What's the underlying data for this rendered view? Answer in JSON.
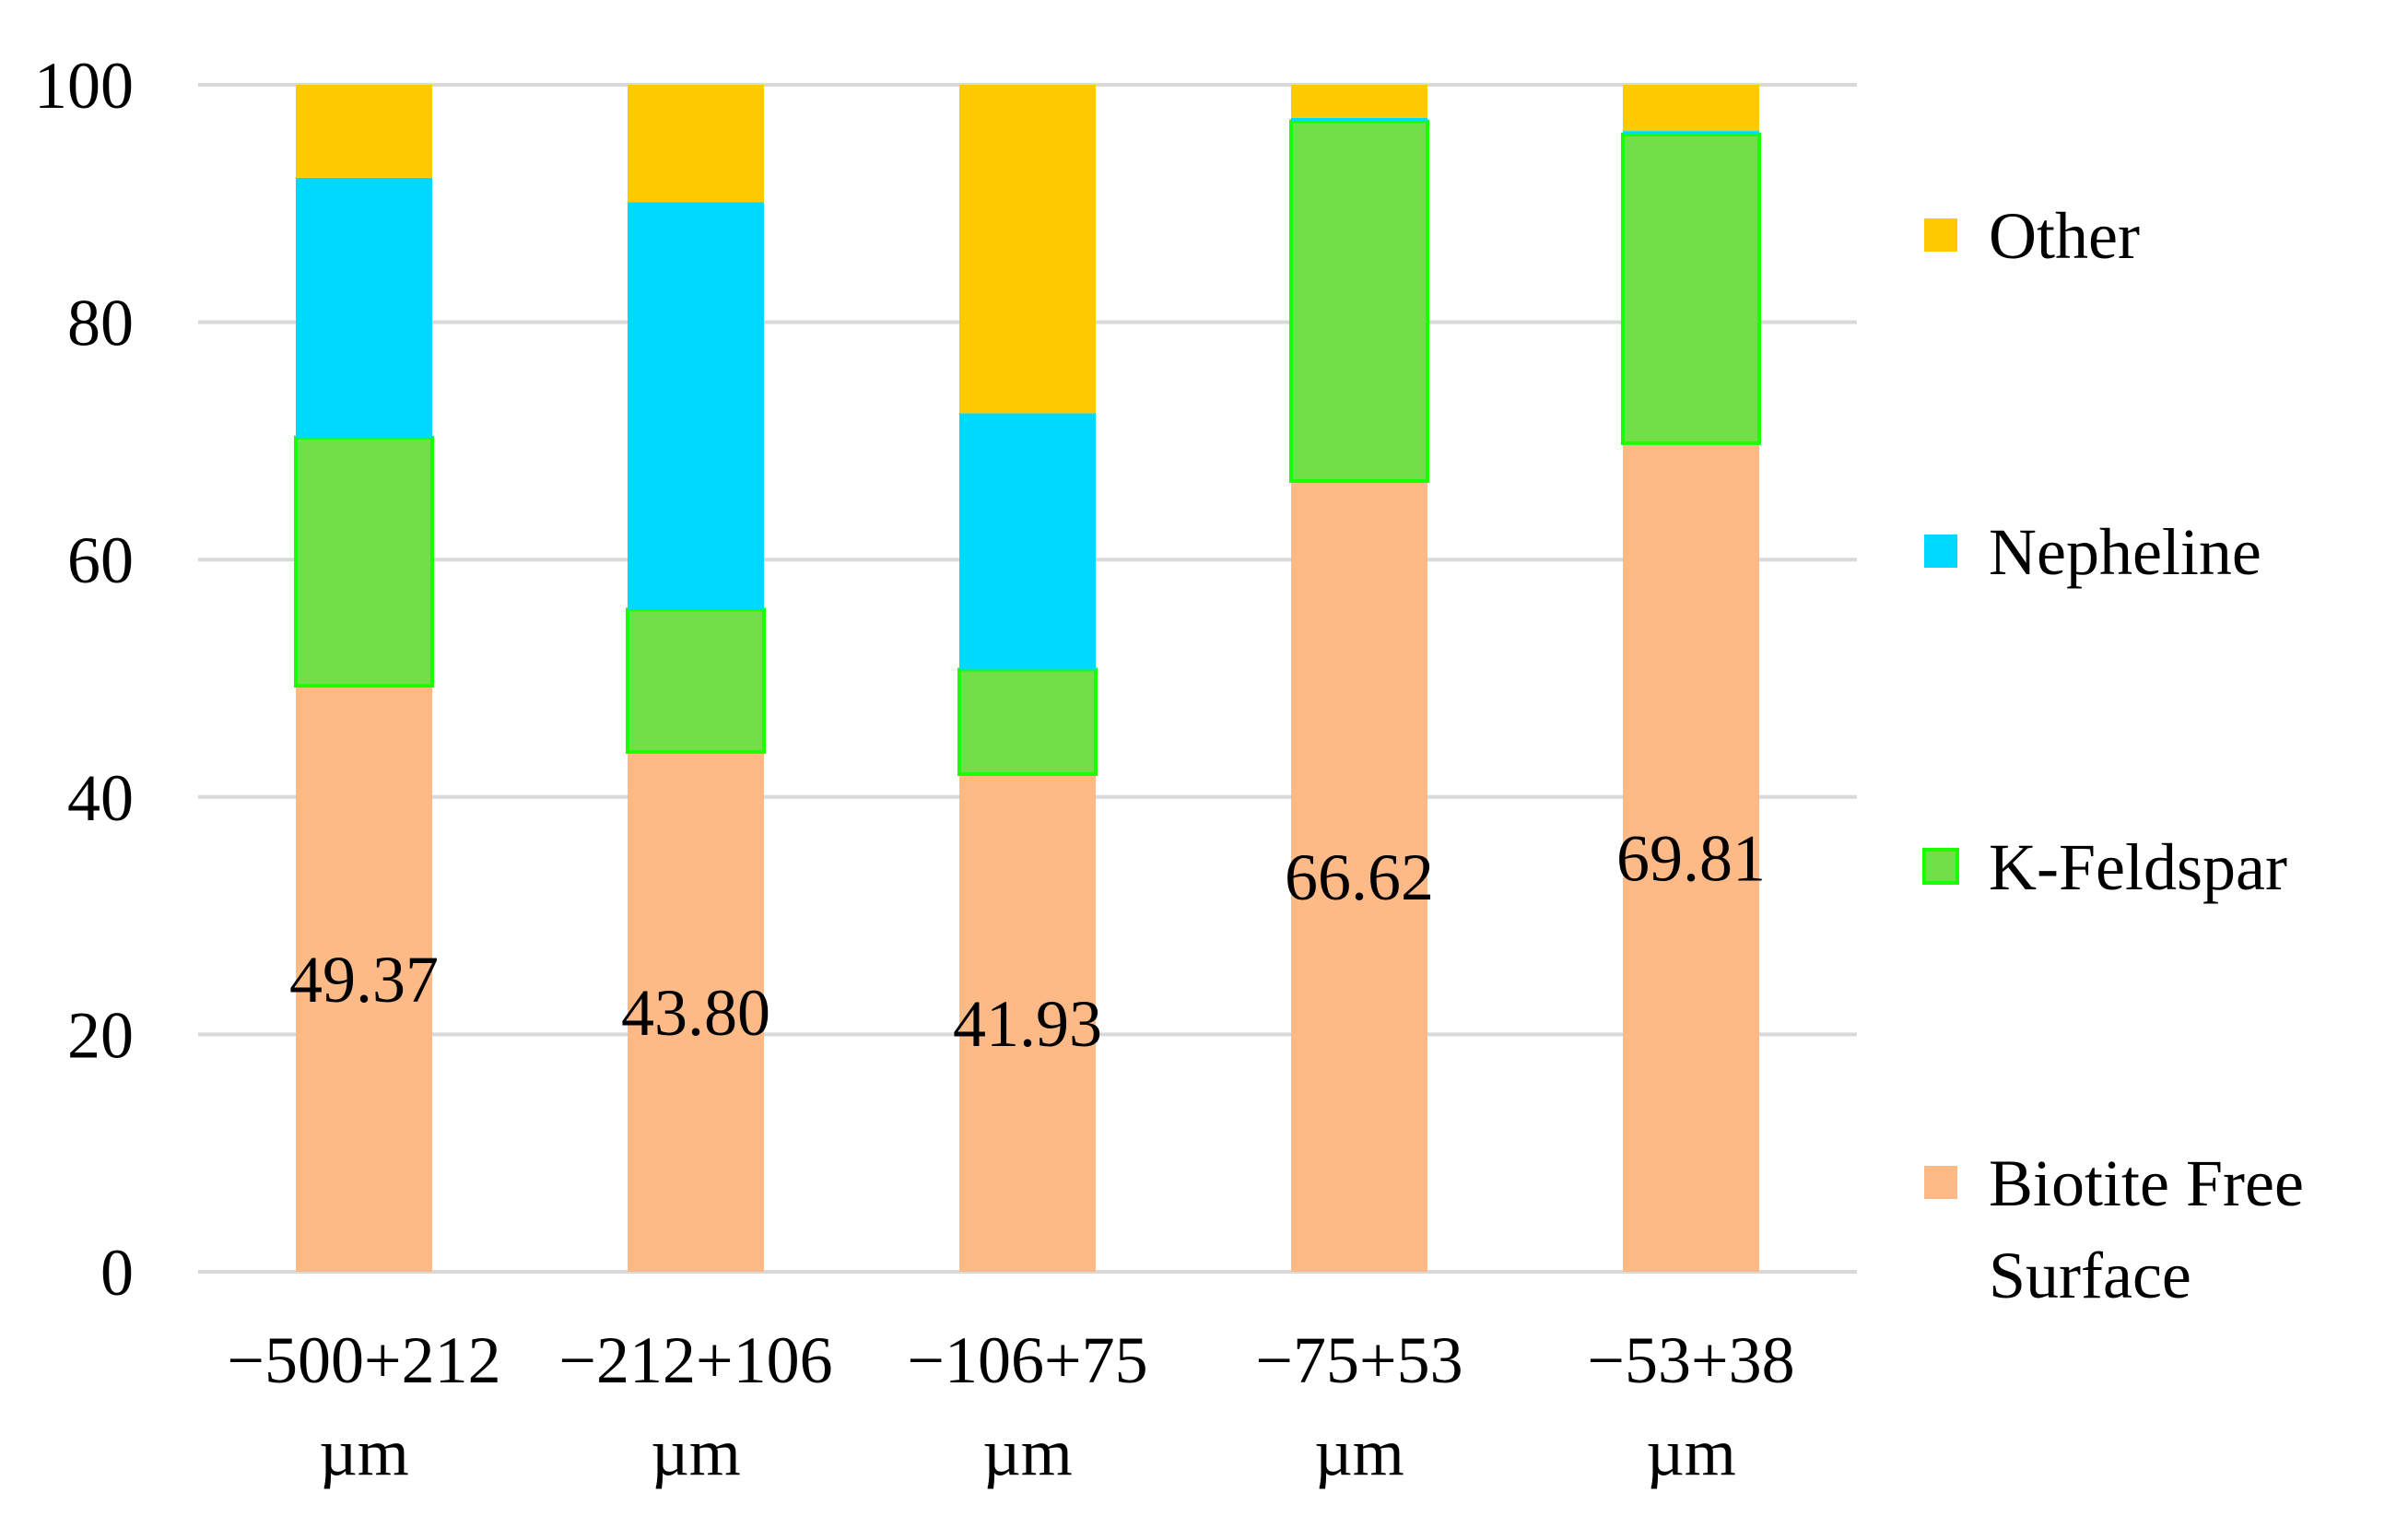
{
  "chart_data": {
    "type": "bar",
    "stacked": true,
    "categories": [
      {
        "line1": "−500+212",
        "line2": "µm"
      },
      {
        "line1": "−212+106",
        "line2": "µm"
      },
      {
        "line1": "−106+75",
        "line2": "µm"
      },
      {
        "line1": "−75+53",
        "line2": "µm"
      },
      {
        "line1": "−53+38",
        "line2": "µm"
      }
    ],
    "series": [
      {
        "name": "Biotite Free Surface",
        "legend_lines": [
          "Biotite Free",
          "Surface"
        ],
        "color": "#fdba87",
        "border": null,
        "values": [
          49.37,
          43.8,
          41.93,
          66.62,
          69.81
        ],
        "labels": [
          "49.37",
          "43.80",
          "41.93",
          "66.62",
          "69.81"
        ]
      },
      {
        "name": "K-Feldspar",
        "legend_lines": [
          "K-Feldspar"
        ],
        "color": "#72df48",
        "border": "#1aff00",
        "values": [
          20.9,
          12.0,
          8.8,
          30.3,
          26.0
        ]
      },
      {
        "name": "Nepheline",
        "legend_lines": [
          "Nepheline"
        ],
        "color": "#00d9ff",
        "border": null,
        "values": [
          21.9,
          34.3,
          21.6,
          0.3,
          0.3
        ]
      },
      {
        "name": "Other",
        "legend_lines": [
          "Other"
        ],
        "color": "#ffcb00",
        "border": null,
        "values": [
          7.83,
          9.9,
          27.67,
          2.78,
          3.89
        ]
      }
    ],
    "ylim": [
      0,
      100
    ],
    "yticks": [
      "0",
      "20",
      "40",
      "60",
      "80",
      "100"
    ],
    "ytick_values": [
      0,
      20,
      40,
      60,
      80,
      100
    ],
    "grid": true,
    "legend_position": "right",
    "title": "",
    "xlabel": "",
    "ylabel": ""
  }
}
